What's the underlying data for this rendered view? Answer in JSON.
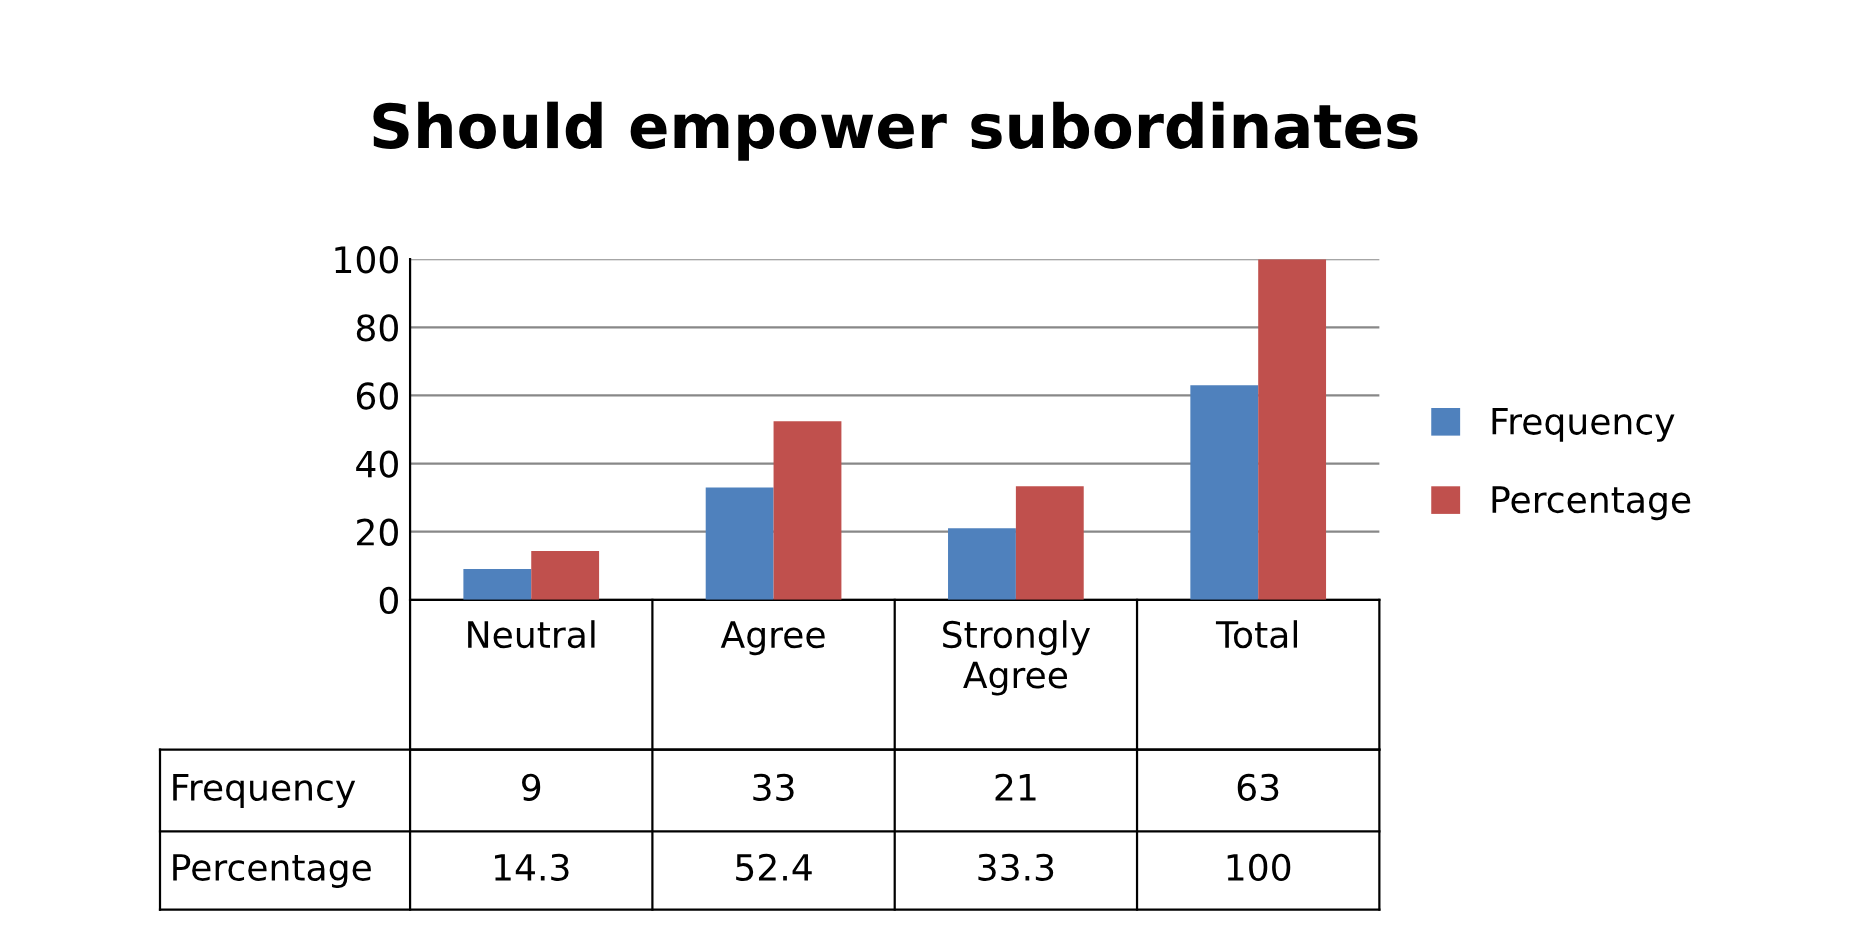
{
  "chart_data": {
    "type": "bar",
    "title": "Should empower subordinates",
    "categories": [
      "Neutral",
      "Agree",
      "Strongly Agree",
      "Total"
    ],
    "series": [
      {
        "name": "Frequency",
        "color": "#4f81bd",
        "values": [
          9,
          33,
          21,
          63
        ]
      },
      {
        "name": "Percentage",
        "color": "#c0504d",
        "values": [
          14.3,
          52.4,
          33.3,
          100
        ]
      }
    ],
    "ylim": [
      0,
      100
    ],
    "yticks": [
      0,
      20,
      40,
      60,
      80,
      100
    ],
    "grid": "y",
    "legend": "right",
    "data_labels": true
  }
}
